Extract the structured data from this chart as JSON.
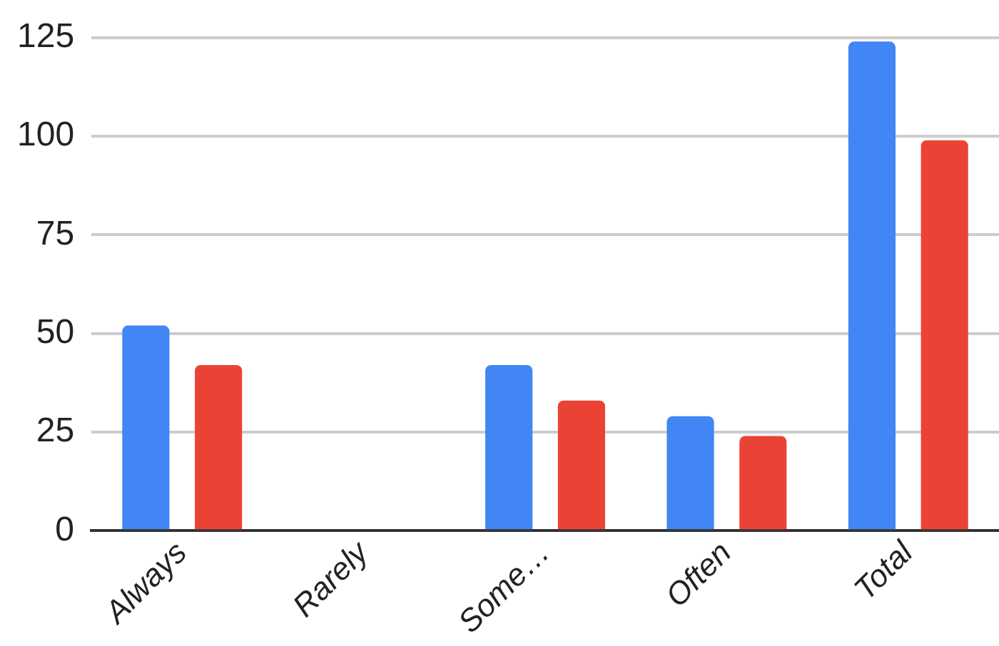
{
  "chart_data": {
    "type": "bar",
    "categories": [
      "Always",
      "Rarely",
      "Some…",
      "Often",
      "Total"
    ],
    "series": [
      {
        "color": "#4285f4",
        "values": [
          52,
          0,
          42,
          29,
          124
        ]
      },
      {
        "color": "#ea4335",
        "values": [
          42,
          0,
          33,
          24,
          99
        ]
      }
    ],
    "ylim": [
      0,
      125
    ],
    "yticks": [
      0,
      25,
      50,
      75,
      100,
      125
    ],
    "grid": "y",
    "legend": false
  }
}
